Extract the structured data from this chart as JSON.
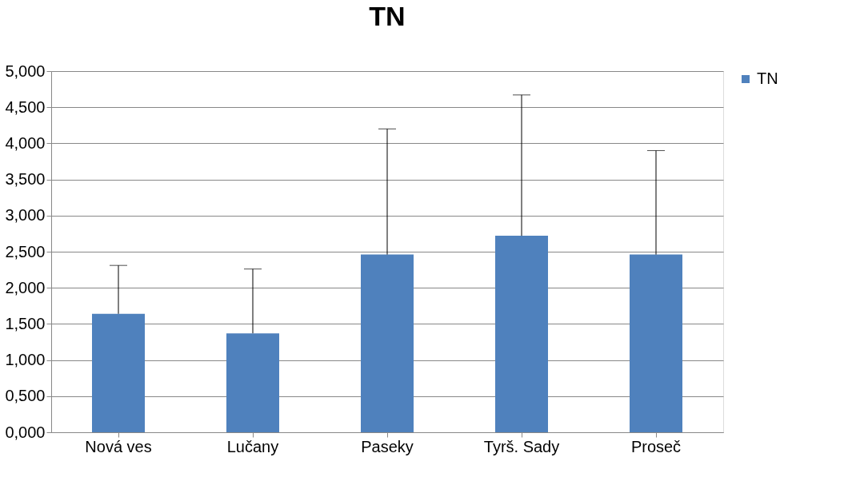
{
  "chart_data": {
    "type": "bar",
    "title": "TN",
    "categories": [
      "Nová ves",
      "Lučany",
      "Paseky",
      "Tyrš. Sady",
      "Proseč"
    ],
    "series": [
      {
        "name": "TN",
        "color": "#4f81bd",
        "values": [
          1.64,
          1.37,
          2.46,
          2.72,
          2.46
        ],
        "errors": [
          [
            1.64,
            2.31
          ],
          [
            1.37,
            2.26
          ],
          [
            2.46,
            4.2
          ],
          [
            2.72,
            4.67
          ],
          [
            2.46,
            3.9
          ]
        ]
      }
    ],
    "ylim": [
      0,
      5
    ],
    "yticks": [
      {
        "value": 0,
        "label": "0,000"
      },
      {
        "value": 0.5,
        "label": "0,500"
      },
      {
        "value": 1,
        "label": "1,000"
      },
      {
        "value": 1.5,
        "label": "1,500"
      },
      {
        "value": 2,
        "label": "2,000"
      },
      {
        "value": 2.5,
        "label": "2,500"
      },
      {
        "value": 3,
        "label": "3,000"
      },
      {
        "value": 3.5,
        "label": "3,500"
      },
      {
        "value": 4,
        "label": "4,000"
      },
      {
        "value": 4.5,
        "label": "4,500"
      },
      {
        "value": 5,
        "label": "5,000"
      }
    ],
    "grid": "y",
    "legend": "right"
  }
}
